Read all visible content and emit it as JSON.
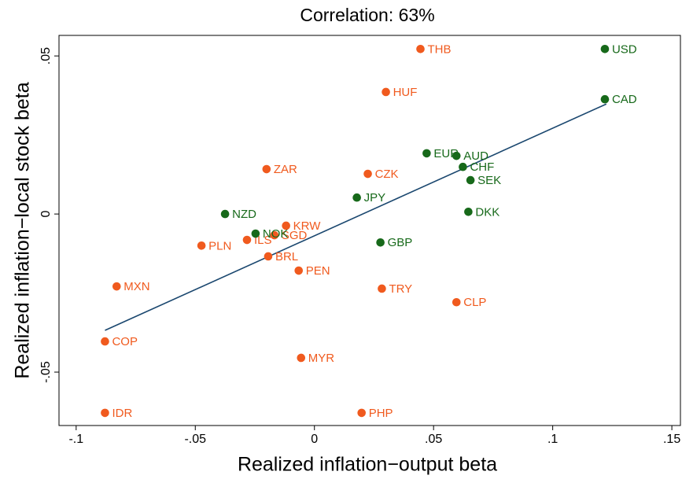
{
  "chart_data": {
    "type": "scatter",
    "title": "Correlation: 63%",
    "x_label": "Realized inflation−output beta",
    "y_label": "Realized inflation−local stock beta",
    "xlim": [
      -0.1072,
      0.1536
    ],
    "ylim": [
      -0.0669,
      0.0565
    ],
    "xticks": [
      {
        "value": -0.1,
        "label": "-.1"
      },
      {
        "value": -0.05,
        "label": "-.05"
      },
      0,
      {
        "value": 0.05,
        "label": ".05"
      },
      {
        "value": 0.1,
        "label": ".1"
      },
      {
        "value": 0.15,
        "label": ".15"
      }
    ],
    "yticks": [
      {
        "value": -0.05,
        "label": "-.05"
      },
      0,
      {
        "value": 0.05,
        "label": ".05"
      }
    ],
    "series": [
      {
        "color": "#f05a1e",
        "labels": [
          "THB",
          "HUF",
          "ZAR",
          "CZK",
          "KRW",
          "SGD",
          "ILS",
          "PLN",
          "BRL",
          "PEN",
          "MXN",
          "TRY",
          "CLP",
          "COP",
          "MYR",
          "IDR",
          "PHP"
        ],
        "x": [
          0.0445,
          0.03,
          -0.0201,
          0.0224,
          -0.0119,
          -0.0168,
          -0.0283,
          -0.0474,
          -0.0194,
          -0.0066,
          -0.083,
          0.0283,
          0.0596,
          -0.0879,
          -0.0056,
          -0.0879,
          0.0198
        ],
        "values": [
          0.0522,
          0.0386,
          0.0142,
          0.0127,
          -0.0037,
          -0.0067,
          -0.0082,
          -0.01,
          -0.0134,
          -0.0179,
          -0.0229,
          -0.0236,
          -0.0279,
          -0.0403,
          -0.0455,
          -0.0629,
          -0.0629
        ]
      },
      {
        "color": "#17691a",
        "labels": [
          "USD",
          "CAD",
          "EUR",
          "AUD",
          "CHF",
          "SEK",
          "JPY",
          "NZD",
          "DKK",
          "NOK",
          "GBP"
        ],
        "x": [
          0.1219,
          0.1219,
          0.0471,
          0.0596,
          0.0623,
          0.0655,
          0.0178,
          -0.0375,
          0.0646,
          -0.0247,
          0.0277
        ],
        "values": [
          0.0522,
          0.0363,
          0.0192,
          0.0184,
          0.0149,
          0.0107,
          0.0052,
          0,
          0.0007,
          -0.0062,
          -0.009
        ]
      }
    ],
    "fit_line": {
      "color": "#1a476f",
      "x": [
        -0.0879,
        0.1225
      ],
      "values": [
        -0.0368,
        0.0348
      ]
    }
  }
}
